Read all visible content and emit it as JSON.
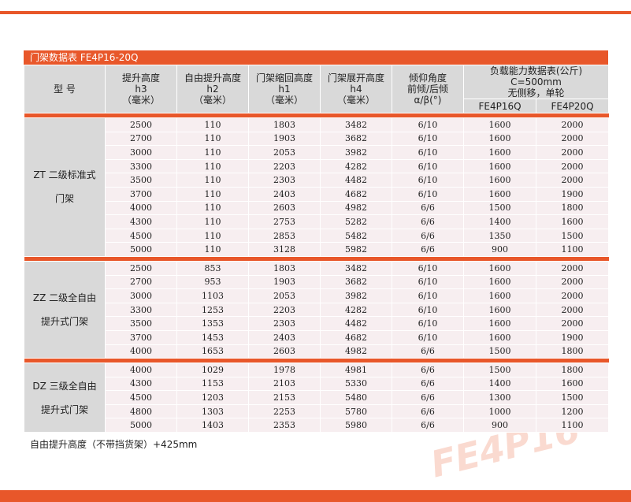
{
  "title": "门架数据表 FE4P16-20Q",
  "watermark": "FE4P16",
  "header": {
    "model": "型 号",
    "columns": [
      [
        "提升高度",
        "h3",
        "（毫米）"
      ],
      [
        "自由提升高度",
        "h2",
        "（毫米）"
      ],
      [
        "门架缩回高度",
        "h1",
        "（毫米）"
      ],
      [
        "门架展开高度",
        "h4",
        "（毫米）"
      ],
      [
        "倾仰角度",
        "前倾/后倾",
        "α/β(°)"
      ]
    ],
    "load": [
      "负载能力数据表(公斤) C=500mm",
      "无侧移，单轮"
    ],
    "load_sub": [
      "FE4P16Q",
      "FE4P20Q"
    ]
  },
  "groups": [
    {
      "label": [
        "ZT 二级标准式",
        "门架"
      ],
      "rows": [
        [
          2500,
          110,
          1803,
          3482,
          "6/10",
          1600,
          2000
        ],
        [
          2700,
          110,
          1903,
          3682,
          "6/10",
          1600,
          2000
        ],
        [
          3000,
          110,
          2053,
          3982,
          "6/10",
          1600,
          2000
        ],
        [
          3300,
          110,
          2203,
          4282,
          "6/10",
          1600,
          2000
        ],
        [
          3500,
          110,
          2303,
          4482,
          "6/10",
          1600,
          2000
        ],
        [
          3700,
          110,
          2403,
          4682,
          "6/10",
          1600,
          1900
        ],
        [
          4000,
          110,
          2603,
          4982,
          "6/6",
          1500,
          1800
        ],
        [
          4300,
          110,
          2753,
          5282,
          "6/6",
          1400,
          1600
        ],
        [
          4500,
          110,
          2853,
          5482,
          "6/6",
          1350,
          1500
        ],
        [
          5000,
          110,
          3128,
          5982,
          "6/6",
          900,
          1100
        ]
      ]
    },
    {
      "label": [
        "ZZ 二级全自由",
        "提升式门架"
      ],
      "rows": [
        [
          2500,
          853,
          1803,
          3482,
          "6/10",
          1600,
          2000
        ],
        [
          2700,
          953,
          1903,
          3682,
          "6/10",
          1600,
          2000
        ],
        [
          3000,
          1103,
          2053,
          3982,
          "6/10",
          1600,
          2000
        ],
        [
          3300,
          1253,
          2203,
          4282,
          "6/10",
          1600,
          2000
        ],
        [
          3500,
          1353,
          2303,
          4482,
          "6/10",
          1600,
          2000
        ],
        [
          3700,
          1453,
          2403,
          4682,
          "6/10",
          1600,
          1900
        ],
        [
          4000,
          1653,
          2603,
          4982,
          "6/6",
          1500,
          1800
        ]
      ]
    },
    {
      "label": [
        "DZ 三级全自由",
        "提升式门架"
      ],
      "rows": [
        [
          4000,
          1029,
          1978,
          4981,
          "6/6",
          1500,
          1800
        ],
        [
          4300,
          1153,
          2103,
          5330,
          "6/6",
          1400,
          1600
        ],
        [
          4500,
          1203,
          2153,
          5480,
          "6/6",
          1300,
          1500
        ],
        [
          4800,
          1303,
          2253,
          5780,
          "6/6",
          1000,
          1200
        ],
        [
          5000,
          1403,
          2353,
          5980,
          "6/6",
          900,
          1100
        ]
      ]
    }
  ],
  "footnote": "自由提升高度（不带挡货架）+425mm"
}
